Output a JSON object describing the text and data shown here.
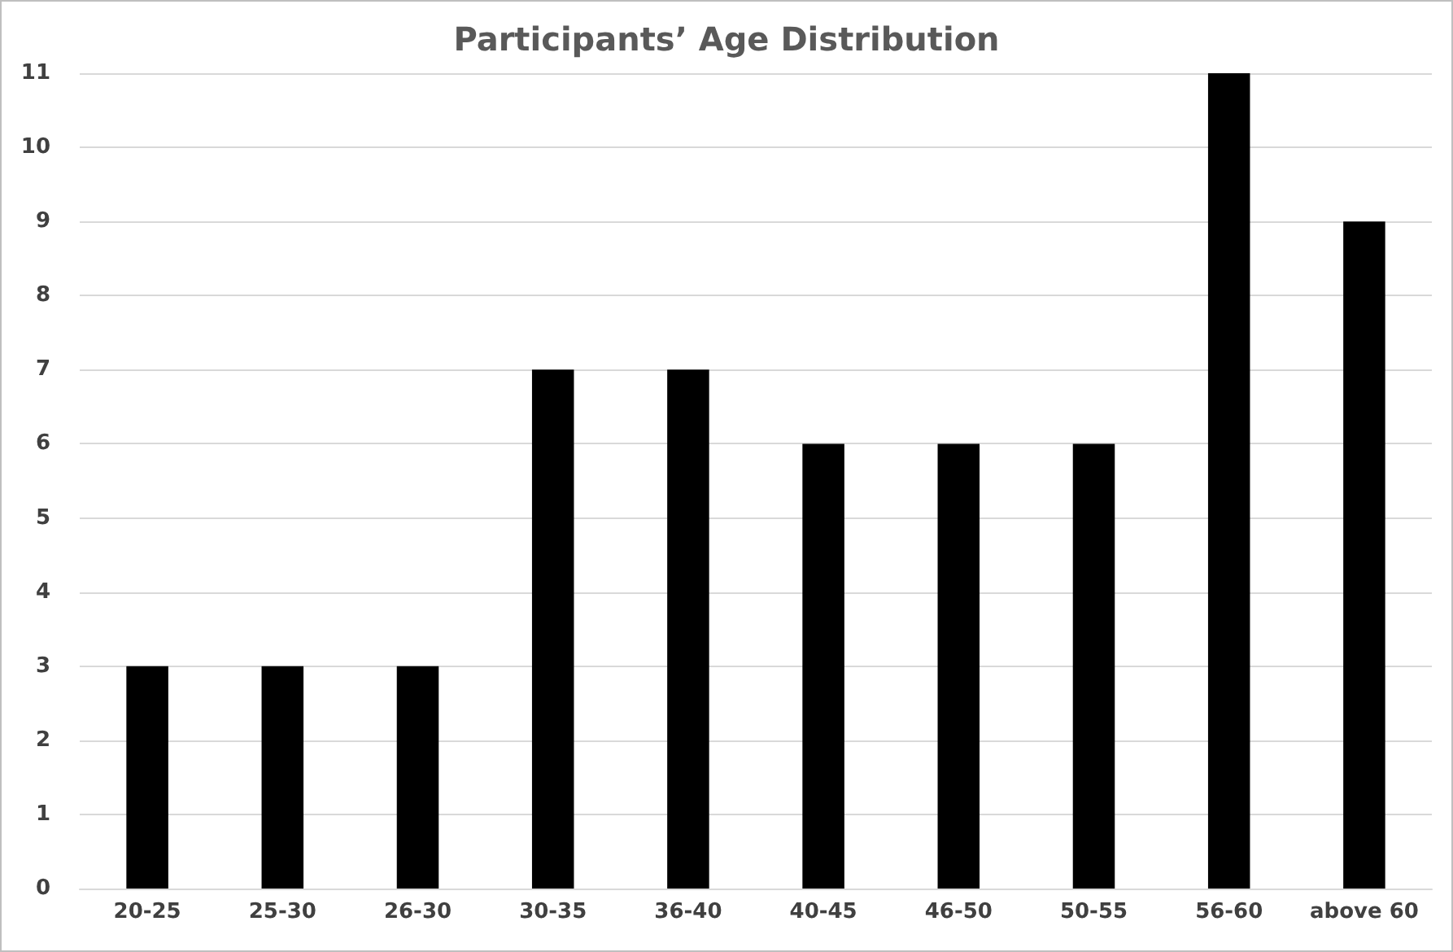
{
  "chart_data": {
    "type": "bar",
    "title": "Participants’ Age Distribution",
    "categories": [
      "20-25",
      "25-30",
      "26-30",
      "30-35",
      "36-40",
      "40-45",
      "46-50",
      "50-55",
      "56-60",
      "above 60"
    ],
    "values": [
      3,
      3,
      3,
      7,
      7,
      6,
      6,
      6,
      11,
      9
    ],
    "color": "#000000",
    "ylim": [
      0,
      11
    ],
    "yticks": [
      0,
      1,
      2,
      3,
      4,
      5,
      6,
      7,
      8,
      9,
      10,
      11
    ],
    "grid": "y"
  }
}
